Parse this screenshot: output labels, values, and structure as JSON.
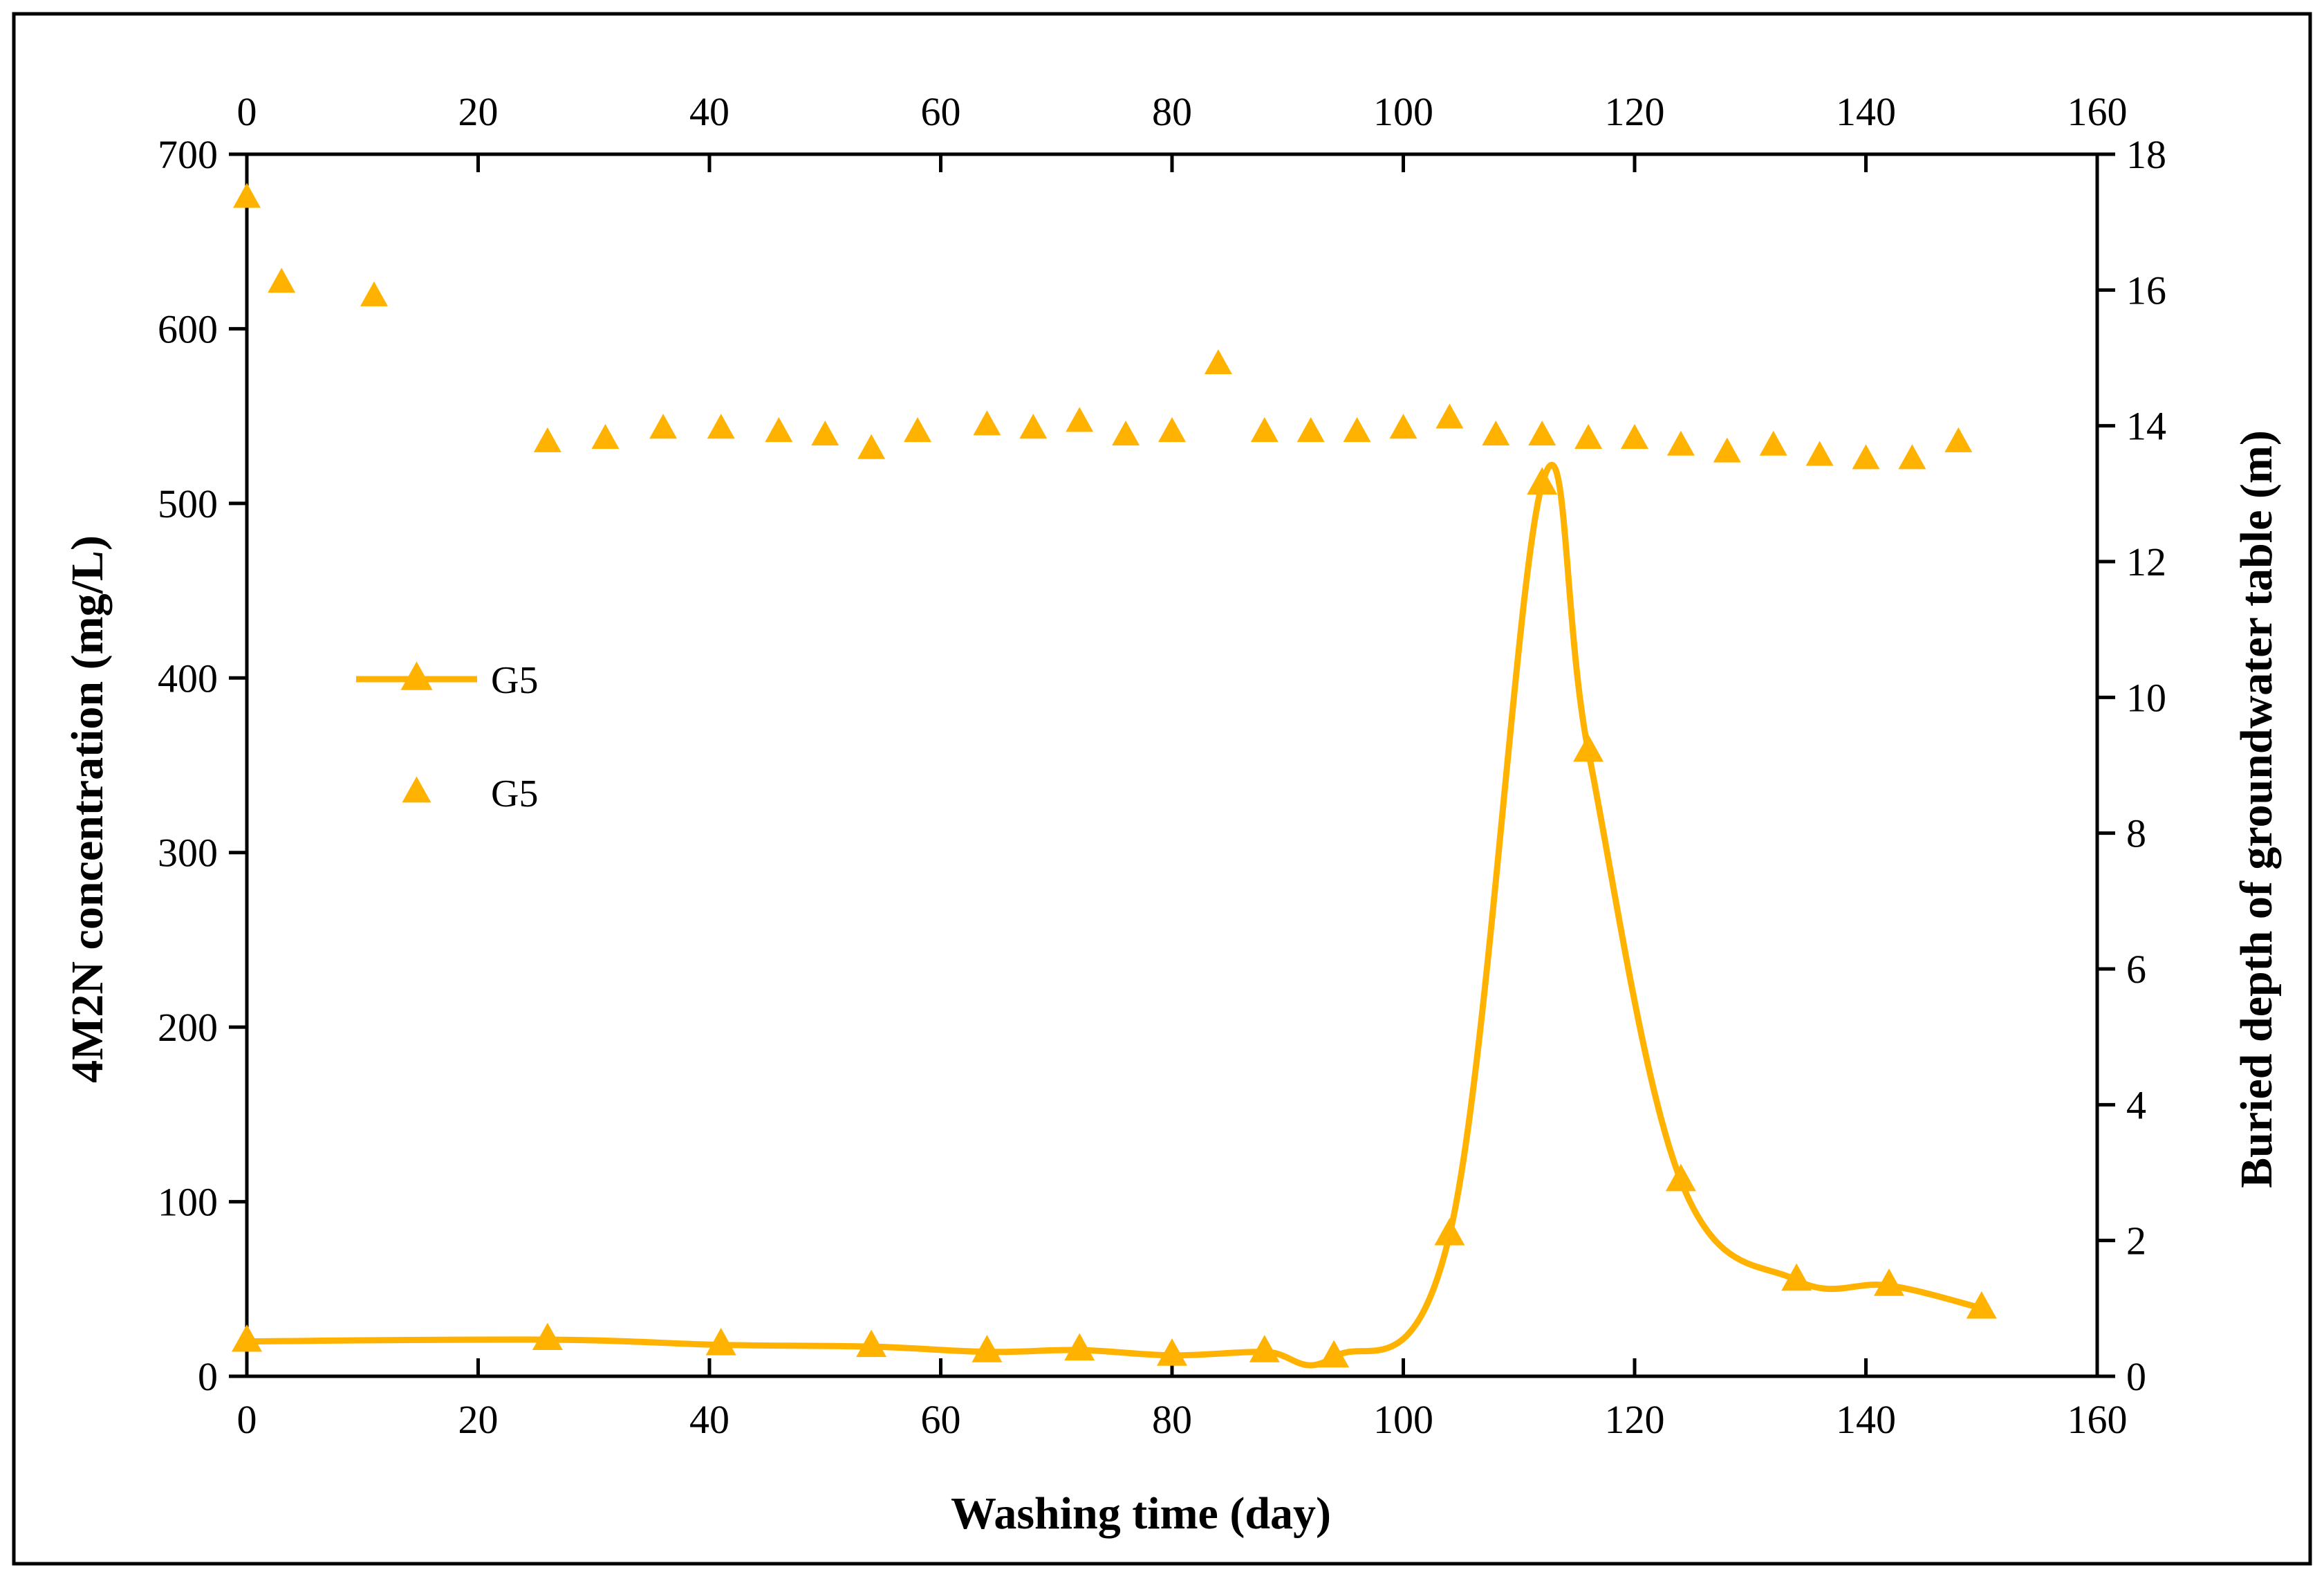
{
  "chart_data": {
    "type": "line",
    "title": "",
    "xlabel": "Washing time (day)",
    "ylabel": "4M2N concentration (mg/L)",
    "y2label": "Buried depth of groundwater table (m)",
    "xlim": [
      0,
      160
    ],
    "ylim": [
      0,
      700
    ],
    "y2lim": [
      0,
      18
    ],
    "x_ticks": [
      0,
      20,
      40,
      60,
      80,
      100,
      120,
      140,
      160
    ],
    "y_ticks": [
      0,
      100,
      200,
      300,
      400,
      500,
      600,
      700
    ],
    "y2_ticks": [
      0,
      2,
      4,
      6,
      8,
      10,
      12,
      14,
      16,
      18
    ],
    "grid": false,
    "legend_position": "left-middle",
    "colors": {
      "series": "#FFB300",
      "axis": "#000000",
      "frame": "#000000"
    },
    "series": [
      {
        "name": "G5",
        "axis": "left",
        "style": "line+triangle",
        "x": [
          0,
          26,
          41,
          54,
          64,
          72,
          80,
          88,
          94,
          104,
          112,
          116,
          124,
          134,
          142,
          150
        ],
        "values": [
          20,
          21,
          18,
          17,
          14,
          15,
          12,
          14,
          11,
          81,
          511,
          358,
          112,
          55,
          52,
          39
        ]
      },
      {
        "name": "G5",
        "axis": "right",
        "style": "triangle",
        "x": [
          0,
          3,
          11,
          26,
          31,
          36,
          41,
          46,
          50,
          54,
          58,
          64,
          68,
          72,
          76,
          80,
          84,
          88,
          92,
          96,
          100,
          104,
          108,
          112,
          116,
          120,
          124,
          128,
          132,
          136,
          140,
          144,
          148
        ],
        "values": [
          17.35,
          16.1,
          15.9,
          13.75,
          13.8,
          13.95,
          13.95,
          13.9,
          13.85,
          13.65,
          13.9,
          14.0,
          13.95,
          14.05,
          13.85,
          13.9,
          14.9,
          13.9,
          13.9,
          13.9,
          13.95,
          14.1,
          13.85,
          13.85,
          13.8,
          13.8,
          13.7,
          13.6,
          13.7,
          13.55,
          13.5,
          13.5,
          13.75
        ]
      }
    ]
  }
}
